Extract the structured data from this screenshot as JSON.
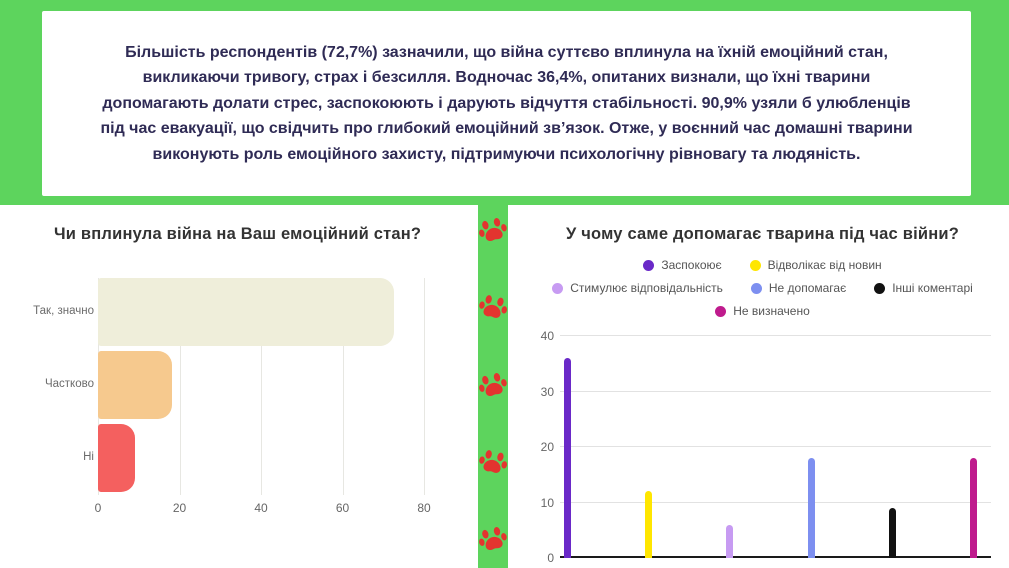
{
  "banner": {
    "summary_text": "Більшість респондентів (72,7%) зазначили, що війна суттєво вплинула на їхній емоційний стан, викликаючи тривогу, страх і безсилля. Водночас 36,4%,  опитаних визнали, що їхні тварини допомагають долати стрес, заспокоюють і дарують відчуття стабільності. 90,9% узяли б улюбленців під час евакуації, що свідчить про глибокий емоційний зв’язок. Отже, у воєнний час домашні тварини виконують роль емоційного захисту, підтримуючи психологічну рівновагу та людяність."
  },
  "colors": {
    "background_green": "#5dd45d",
    "text_dark": "#2f2b55",
    "paw_red": "#e3342f"
  },
  "divider": {
    "paw_icon": "paw-icon",
    "paw_count": 5
  },
  "chart_data": [
    {
      "type": "bar",
      "orientation": "horizontal",
      "title": "Чи вплинула війна на Ваш емоційний стан?",
      "categories": [
        "Так, значно",
        "Частково",
        "Ні"
      ],
      "values": [
        72.7,
        18.2,
        9.1
      ],
      "bar_colors": [
        "#efeeda",
        "#f6c98e",
        "#f4605f"
      ],
      "xlabel": "",
      "ylabel": "",
      "xlim": [
        0,
        80
      ],
      "xticks": [
        0,
        20,
        40,
        60,
        80
      ],
      "grid": true,
      "legend_position": "none"
    },
    {
      "type": "bar",
      "orientation": "vertical",
      "title": "У чому саме допомагає тварина під час війни?",
      "series": [
        {
          "name": "Заспокоює",
          "value": 36,
          "color": "#6a29c8"
        },
        {
          "name": "Відволікає від новин",
          "value": 12,
          "color": "#ffe600"
        },
        {
          "name": "Стимулює відповідальність",
          "value": 6,
          "color": "#c79bf2"
        },
        {
          "name": "Не допомагає",
          "value": 18,
          "color": "#7d8ff0"
        },
        {
          "name": "Інші коментарі",
          "value": 9,
          "color": "#111111"
        },
        {
          "name": "Не визначено",
          "value": 18,
          "color": "#bf1b8d"
        }
      ],
      "xlabel": "",
      "ylabel": "",
      "ylim": [
        0,
        40
      ],
      "yticks": [
        0,
        10,
        20,
        30,
        40
      ],
      "grid": true,
      "legend_position": "top"
    }
  ]
}
